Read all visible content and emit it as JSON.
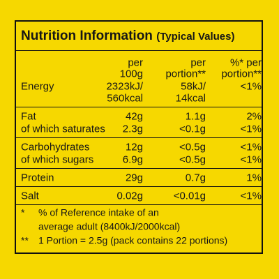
{
  "header": {
    "title": "Nutrition Information",
    "subtitle": "(Typical Values)"
  },
  "table": {
    "columns": [
      [
        "per",
        "100g"
      ],
      [
        "per",
        "portion**"
      ],
      [
        "%* per",
        "portion**"
      ]
    ],
    "groups": [
      [
        {
          "label": "Energy",
          "values": [
            [
              "2323kJ/",
              "560kcal"
            ],
            [
              "58kJ/",
              "14kcal"
            ],
            [
              "<1%"
            ]
          ]
        }
      ],
      [
        {
          "label": "Fat",
          "values": [
            "42g",
            "1.1g",
            "2%"
          ]
        },
        {
          "label": "of which saturates",
          "values": [
            "2.3g",
            "<0.1g",
            "<1%"
          ]
        }
      ],
      [
        {
          "label": "Carbohydrates",
          "values": [
            "12g",
            "<0.5g",
            "<1%"
          ]
        },
        {
          "label": "of which sugars",
          "values": [
            "6.9g",
            "<0.5g",
            "<1%"
          ]
        }
      ],
      [
        {
          "label": "Protein",
          "values": [
            "29g",
            "0.7g",
            "1%"
          ]
        }
      ],
      [
        {
          "label": "Salt",
          "values": [
            "0.02g",
            "<0.01g",
            "<1%"
          ]
        }
      ]
    ]
  },
  "footnotes": [
    {
      "mark": "*",
      "lines": [
        "% of Reference intake of an",
        "average adult (8400kJ/2000kcal)"
      ]
    },
    {
      "mark": "**",
      "lines": [
        "1 Portion = 2.5g (pack contains 22 portions)"
      ]
    }
  ]
}
